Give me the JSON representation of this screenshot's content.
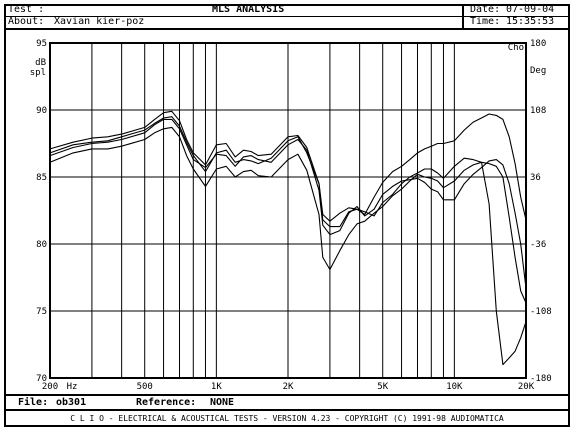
{
  "header": {
    "test_label": "Test :",
    "about_label": "About:",
    "about_value": "Xavian kier-poz",
    "title": "MLS ANALYSIS",
    "date_label": "Date:",
    "date_value": "07-09-04",
    "time_label": "Time:",
    "time_value": "15:35:53"
  },
  "footer": {
    "file_label": "File:",
    "file_value": "ob301",
    "ref_label": "Reference:",
    "ref_value": "NONE",
    "banner": "C L I O  -  ELECTRICAL & ACOUSTICAL TESTS  -  VERSION 4.23  -  COPYRIGHT (C) 1991-98 AUDIOMATICA"
  },
  "chart_data": {
    "type": "line",
    "title": "MLS ANALYSIS",
    "ylabel": "dB spl",
    "ylabel_lines": [
      "dB",
      "spl"
    ],
    "y2label_top": "Cho",
    "y2label": "Deg",
    "xlabel": "Hz",
    "xscale": "log",
    "xlim": [
      200,
      20000
    ],
    "ylim": [
      70,
      95
    ],
    "y2lim": [
      -180,
      180
    ],
    "x_ticks": [
      {
        "value": 200,
        "label": "200"
      },
      {
        "value": 500,
        "label": "500"
      },
      {
        "value": 1000,
        "label": "1K"
      },
      {
        "value": 2000,
        "label": "2K"
      },
      {
        "value": 5000,
        "label": "5K"
      },
      {
        "value": 10000,
        "label": "10K"
      },
      {
        "value": 20000,
        "label": "20K"
      }
    ],
    "y_ticks": [
      70,
      75,
      80,
      85,
      90,
      95
    ],
    "y2_ticks": [
      -180,
      -108,
      -36,
      36,
      108,
      180
    ],
    "grid": true,
    "series": [
      {
        "points": [
          [
            200,
            86.6
          ],
          [
            250,
            87.2
          ],
          [
            300,
            87.5
          ],
          [
            350,
            87.6
          ],
          [
            400,
            87.8
          ],
          [
            500,
            88.3
          ],
          [
            550,
            88.9
          ],
          [
            600,
            89.3
          ],
          [
            650,
            89.3
          ],
          [
            700,
            88.6
          ],
          [
            750,
            87.4
          ],
          [
            800,
            86.3
          ],
          [
            900,
            85.7
          ],
          [
            1000,
            86.7
          ],
          [
            1100,
            86.6
          ],
          [
            1200,
            85.8
          ],
          [
            1300,
            86.5
          ],
          [
            1400,
            86.6
          ],
          [
            1500,
            86.3
          ],
          [
            1700,
            86.1
          ],
          [
            2000,
            87.4
          ],
          [
            2200,
            87.8
          ],
          [
            2400,
            87.0
          ],
          [
            2700,
            84.0
          ],
          [
            2800,
            81.4
          ],
          [
            3000,
            80.7
          ],
          [
            3300,
            81.0
          ],
          [
            3600,
            82.3
          ],
          [
            3900,
            82.8
          ],
          [
            4200,
            82.1
          ],
          [
            4600,
            82.6
          ],
          [
            5000,
            83.7
          ],
          [
            5500,
            84.3
          ],
          [
            6000,
            84.7
          ],
          [
            6500,
            84.8
          ],
          [
            7000,
            84.9
          ],
          [
            7500,
            84.6
          ],
          [
            8000,
            84.1
          ],
          [
            8500,
            83.9
          ],
          [
            9000,
            83.3
          ],
          [
            10000,
            83.3
          ],
          [
            11000,
            84.5
          ],
          [
            12000,
            85.2
          ],
          [
            13000,
            85.7
          ],
          [
            14000,
            86.2
          ],
          [
            15000,
            86.3
          ],
          [
            16000,
            85.9
          ],
          [
            17000,
            84.5
          ],
          [
            18000,
            82.3
          ],
          [
            19000,
            80.0
          ],
          [
            20000,
            76.7
          ]
        ]
      },
      {
        "points": [
          [
            200,
            87.1
          ],
          [
            250,
            87.6
          ],
          [
            300,
            87.9
          ],
          [
            350,
            88.0
          ],
          [
            400,
            88.2
          ],
          [
            500,
            88.7
          ],
          [
            550,
            89.3
          ],
          [
            600,
            89.8
          ],
          [
            650,
            89.9
          ],
          [
            700,
            89.2
          ],
          [
            750,
            87.8
          ],
          [
            800,
            86.8
          ],
          [
            900,
            85.9
          ],
          [
            1000,
            87.4
          ],
          [
            1100,
            87.5
          ],
          [
            1200,
            86.5
          ],
          [
            1300,
            87.0
          ],
          [
            1400,
            86.9
          ],
          [
            1500,
            86.6
          ],
          [
            1700,
            86.7
          ],
          [
            2000,
            88.0
          ],
          [
            2200,
            88.1
          ],
          [
            2400,
            87.2
          ],
          [
            2700,
            84.5
          ],
          [
            2800,
            81.8
          ],
          [
            3000,
            81.3
          ],
          [
            3300,
            81.3
          ],
          [
            3600,
            82.4
          ],
          [
            3900,
            82.6
          ],
          [
            4200,
            82.4
          ],
          [
            4600,
            82.1
          ],
          [
            5000,
            83.1
          ],
          [
            5500,
            83.7
          ],
          [
            6000,
            84.5
          ],
          [
            6500,
            85.0
          ],
          [
            7000,
            85.3
          ],
          [
            7500,
            85.6
          ],
          [
            8000,
            85.6
          ],
          [
            8500,
            85.3
          ],
          [
            9000,
            84.9
          ],
          [
            10000,
            85.8
          ],
          [
            11000,
            86.4
          ],
          [
            12000,
            86.3
          ],
          [
            13000,
            86.1
          ],
          [
            14000,
            86.0
          ],
          [
            15000,
            85.8
          ],
          [
            16000,
            85.0
          ],
          [
            17000,
            82.0
          ],
          [
            18000,
            79.0
          ],
          [
            19000,
            76.5
          ],
          [
            20000,
            75.6
          ]
        ]
      },
      {
        "points": [
          [
            200,
            86.1
          ],
          [
            250,
            86.8
          ],
          [
            300,
            87.1
          ],
          [
            350,
            87.1
          ],
          [
            400,
            87.3
          ],
          [
            500,
            87.8
          ],
          [
            550,
            88.3
          ],
          [
            600,
            88.6
          ],
          [
            650,
            88.7
          ],
          [
            700,
            88.0
          ],
          [
            750,
            86.6
          ],
          [
            800,
            85.6
          ],
          [
            900,
            84.3
          ],
          [
            1000,
            85.6
          ],
          [
            1100,
            85.8
          ],
          [
            1200,
            85.0
          ],
          [
            1300,
            85.4
          ],
          [
            1400,
            85.5
          ],
          [
            1500,
            85.1
          ],
          [
            1700,
            85.0
          ],
          [
            2000,
            86.3
          ],
          [
            2200,
            86.7
          ],
          [
            2400,
            85.5
          ],
          [
            2700,
            82.2
          ],
          [
            2800,
            79.0
          ],
          [
            3000,
            78.1
          ],
          [
            3300,
            79.5
          ],
          [
            3600,
            80.7
          ],
          [
            3900,
            81.5
          ],
          [
            4200,
            81.7
          ],
          [
            4600,
            82.3
          ],
          [
            5000,
            82.8
          ],
          [
            5500,
            83.6
          ],
          [
            6000,
            84.1
          ],
          [
            6500,
            84.7
          ],
          [
            7000,
            85.2
          ],
          [
            7500,
            85.0
          ],
          [
            8000,
            84.9
          ],
          [
            8500,
            84.7
          ],
          [
            9000,
            84.2
          ],
          [
            10000,
            84.7
          ],
          [
            11000,
            85.5
          ],
          [
            12000,
            85.9
          ],
          [
            13000,
            86.1
          ],
          [
            14000,
            83.0
          ],
          [
            15000,
            75.0
          ],
          [
            16000,
            71.0
          ],
          [
            17000,
            71.5
          ],
          [
            18000,
            72.0
          ],
          [
            19000,
            73.0
          ],
          [
            20000,
            74.2
          ]
        ]
      },
      {
        "points": [
          [
            200,
            86.8
          ],
          [
            250,
            87.4
          ],
          [
            300,
            87.6
          ],
          [
            350,
            87.7
          ],
          [
            400,
            88.0
          ],
          [
            500,
            88.5
          ],
          [
            550,
            89.0
          ],
          [
            600,
            89.4
          ],
          [
            650,
            89.5
          ],
          [
            700,
            88.8
          ],
          [
            750,
            87.6
          ],
          [
            800,
            86.6
          ],
          [
            900,
            85.4
          ],
          [
            1000,
            86.8
          ],
          [
            1100,
            87.0
          ],
          [
            1200,
            86.1
          ],
          [
            1300,
            86.3
          ],
          [
            1400,
            86.2
          ],
          [
            1500,
            86.0
          ],
          [
            1700,
            86.4
          ],
          [
            2000,
            87.7
          ],
          [
            2200,
            88.0
          ],
          [
            2400,
            86.8
          ],
          [
            2700,
            84.5
          ],
          [
            2800,
            82.2
          ],
          [
            3000,
            81.7
          ],
          [
            3300,
            82.3
          ],
          [
            3600,
            82.7
          ],
          [
            3900,
            82.6
          ],
          [
            4200,
            82.2
          ],
          [
            4600,
            83.5
          ],
          [
            5000,
            84.6
          ],
          [
            5500,
            85.4
          ],
          [
            6000,
            85.8
          ],
          [
            6500,
            86.3
          ],
          [
            7000,
            86.8
          ],
          [
            7500,
            87.1
          ],
          [
            8000,
            87.3
          ],
          [
            8500,
            87.5
          ],
          [
            9000,
            87.5
          ],
          [
            10000,
            87.7
          ],
          [
            11000,
            88.5
          ],
          [
            12000,
            89.1
          ],
          [
            13000,
            89.4
          ],
          [
            14000,
            89.7
          ],
          [
            15000,
            89.6
          ],
          [
            16000,
            89.3
          ],
          [
            17000,
            88.0
          ],
          [
            18000,
            86.0
          ],
          [
            19000,
            83.5
          ],
          [
            20000,
            81.8
          ]
        ]
      }
    ]
  }
}
